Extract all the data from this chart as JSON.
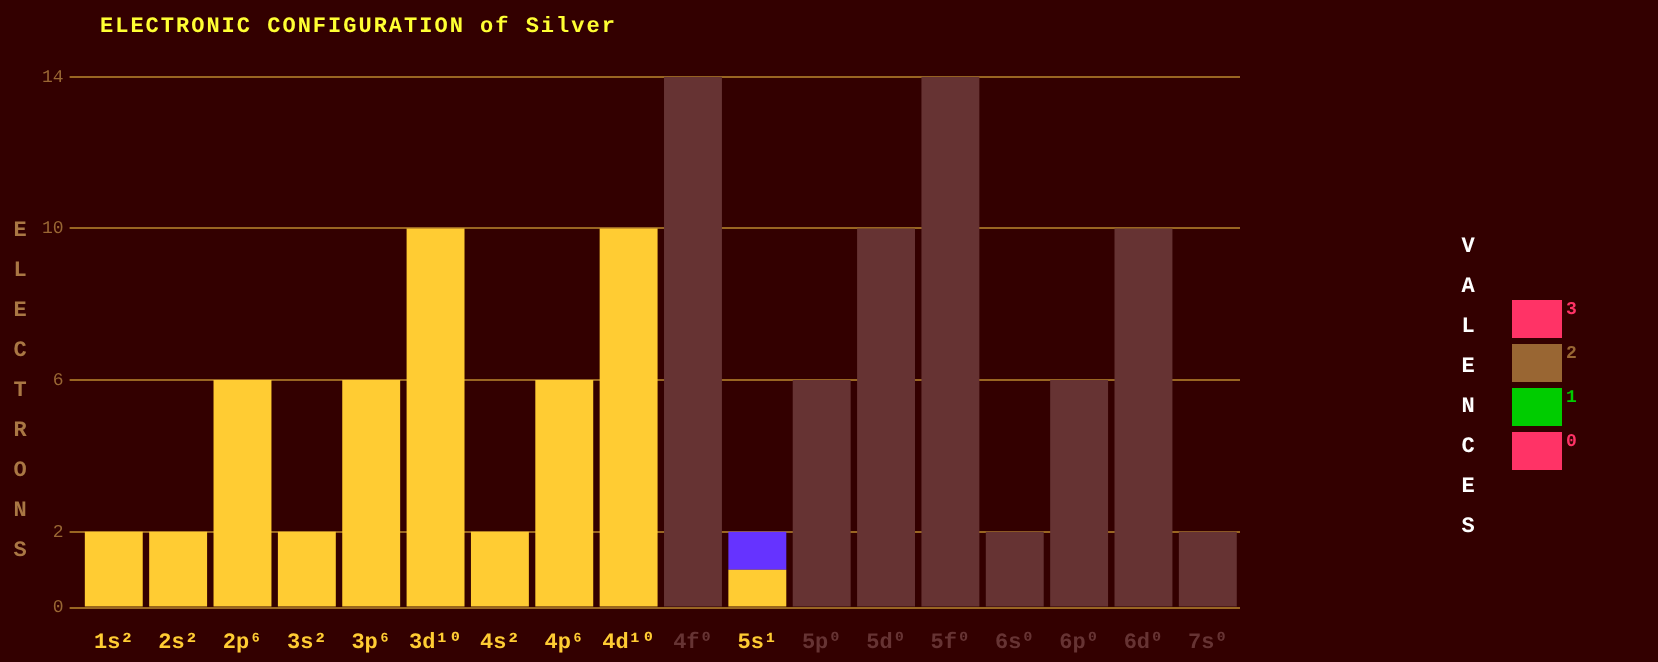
{
  "chart_data": {
    "type": "bar",
    "title": "ELECTRONIC CONFIGURATION of Silver",
    "ylabel": "ELECTRONS",
    "legend_title": "VALENCES",
    "categories": [
      "1s²",
      "2s²",
      "2p⁶",
      "3s²",
      "3p⁶",
      "3d¹⁰",
      "4s²",
      "4p⁶",
      "4d¹⁰",
      "4f⁰",
      "5s¹",
      "5p⁰",
      "5d⁰",
      "5f⁰",
      "6s⁰",
      "6p⁰",
      "6d⁰",
      "7s⁰"
    ],
    "stacked": true,
    "series": [
      {
        "color": "#ffcc33",
        "values": [
          2,
          2,
          6,
          2,
          6,
          10,
          2,
          6,
          10,
          0,
          1,
          0,
          0,
          0,
          0,
          0,
          0,
          0
        ]
      },
      {
        "colors": [
          "#663333",
          "#663333",
          "#663333",
          "#663333",
          "#663333",
          "#663333",
          "#663333",
          "#663333",
          "#663333",
          "#663333",
          "#6633ff",
          "#663333",
          "#663333",
          "#663333",
          "#663333",
          "#663333",
          "#663333",
          "#663333"
        ],
        "values": [
          0,
          0,
          0,
          0,
          0,
          0,
          0,
          0,
          0,
          14,
          1,
          6,
          10,
          14,
          2,
          6,
          10,
          2
        ]
      },
      {
        "name": "3",
        "color": "#ff3366",
        "values": [
          null,
          null,
          null,
          null,
          null,
          null,
          null,
          null,
          null,
          null,
          null,
          null,
          null,
          null,
          null,
          null,
          null,
          null
        ]
      },
      {
        "name": "2",
        "color": "#996633",
        "values": [
          null,
          null,
          null,
          null,
          null,
          null,
          null,
          null,
          null,
          null,
          null,
          null,
          null,
          null,
          null,
          null,
          null,
          null
        ]
      },
      {
        "name": "1",
        "color": "#00cc00",
        "values": [
          null,
          null,
          null,
          null,
          null,
          null,
          null,
          null,
          null,
          null,
          null,
          null,
          null,
          null,
          null,
          null,
          null,
          null
        ]
      },
      {
        "name": "0",
        "color": "#ff3366",
        "values": [
          null,
          null,
          null,
          null,
          null,
          null,
          null,
          null,
          null,
          null,
          null,
          null,
          null,
          null,
          null,
          null,
          null,
          null
        ]
      }
    ],
    "ylim": [
      0,
      14
    ],
    "yticks": [
      0,
      2,
      6,
      10,
      14
    ],
    "grid": "y",
    "legend": "right"
  }
}
